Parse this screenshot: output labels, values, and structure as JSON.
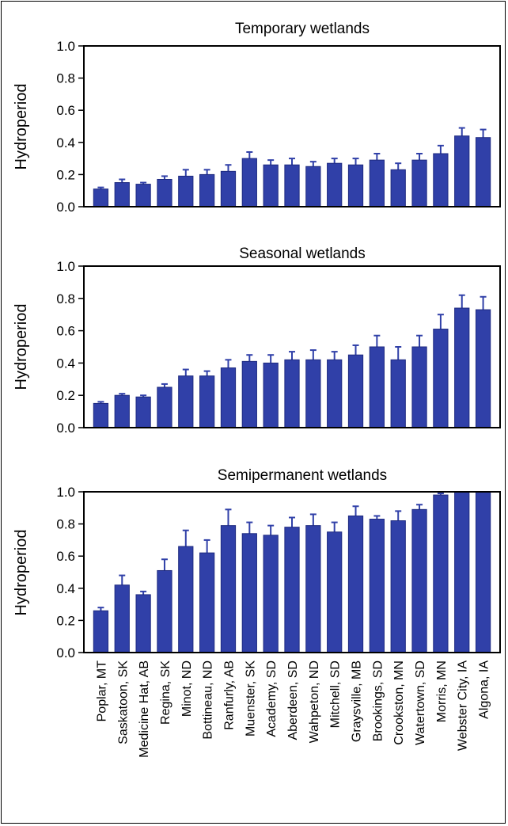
{
  "colors": {
    "bar": "#3040A8",
    "bar_edge": "#1E2A80",
    "axis": "#000000"
  },
  "chart_data": [
    {
      "type": "bar",
      "title": "Temporary wetlands",
      "ylabel": "Hydroperiod",
      "xlabel": "",
      "ylim": [
        0,
        1.0
      ],
      "yticks": [
        "0.0",
        "0.2",
        "0.4",
        "0.6",
        "0.8",
        "1.0"
      ],
      "categories": [
        "Poplar, MT",
        "Saskatoon, SK",
        "Medicine Hat, AB",
        "Regina, SK",
        "Minot, ND",
        "Bottineau, ND",
        "Ranfurly, AB",
        "Muenster, SK",
        "Academy, SD",
        "Aberdeen, SD",
        "Wahpeton, ND",
        "Mitchell, SD",
        "Graysville, MB",
        "Brookings, SD",
        "Crookston, MN",
        "Watertown, SD",
        "Morris, MN",
        "Webster City, IA",
        "Algona, IA"
      ],
      "values": [
        0.11,
        0.15,
        0.14,
        0.17,
        0.19,
        0.2,
        0.22,
        0.3,
        0.26,
        0.26,
        0.25,
        0.27,
        0.26,
        0.29,
        0.23,
        0.29,
        0.33,
        0.44,
        0.43
      ],
      "errors": [
        0.01,
        0.02,
        0.01,
        0.02,
        0.04,
        0.03,
        0.04,
        0.04,
        0.03,
        0.04,
        0.03,
        0.03,
        0.04,
        0.04,
        0.04,
        0.04,
        0.05,
        0.05,
        0.05
      ]
    },
    {
      "type": "bar",
      "title": "Seasonal wetlands",
      "ylabel": "Hydroperiod",
      "xlabel": "",
      "ylim": [
        0,
        1.0
      ],
      "yticks": [
        "0.0",
        "0.2",
        "0.4",
        "0.6",
        "0.8",
        "1.0"
      ],
      "categories": [
        "Poplar, MT",
        "Saskatoon, SK",
        "Medicine Hat, AB",
        "Regina, SK",
        "Minot, ND",
        "Bottineau, ND",
        "Ranfurly, AB",
        "Muenster, SK",
        "Academy, SD",
        "Aberdeen, SD",
        "Wahpeton, ND",
        "Mitchell, SD",
        "Graysville, MB",
        "Brookings, SD",
        "Crookston, MN",
        "Watertown, SD",
        "Morris, MN",
        "Webster City, IA",
        "Algona, IA"
      ],
      "values": [
        0.15,
        0.2,
        0.19,
        0.25,
        0.32,
        0.32,
        0.37,
        0.41,
        0.4,
        0.42,
        0.42,
        0.42,
        0.45,
        0.5,
        0.42,
        0.5,
        0.61,
        0.74,
        0.73
      ],
      "errors": [
        0.01,
        0.01,
        0.01,
        0.02,
        0.04,
        0.03,
        0.05,
        0.04,
        0.05,
        0.05,
        0.06,
        0.05,
        0.06,
        0.07,
        0.08,
        0.07,
        0.09,
        0.08,
        0.08
      ]
    },
    {
      "type": "bar",
      "title": "Semipermanent wetlands",
      "ylabel": "Hydroperiod",
      "xlabel": "",
      "ylim": [
        0,
        1.0
      ],
      "yticks": [
        "0.0",
        "0.2",
        "0.4",
        "0.6",
        "0.8",
        "1.0"
      ],
      "categories": [
        "Poplar, MT",
        "Saskatoon, SK",
        "Medicine Hat, AB",
        "Regina, SK",
        "Minot, ND",
        "Bottineau, ND",
        "Ranfurly, AB",
        "Muenster, SK",
        "Academy, SD",
        "Aberdeen, SD",
        "Wahpeton, ND",
        "Mitchell, SD",
        "Graysville, MB",
        "Brookings, SD",
        "Crookston, MN",
        "Watertown, SD",
        "Morris, MN",
        "Webster City, IA",
        "Algona, IA"
      ],
      "values": [
        0.26,
        0.42,
        0.36,
        0.51,
        0.66,
        0.62,
        0.79,
        0.74,
        0.73,
        0.78,
        0.79,
        0.75,
        0.85,
        0.83,
        0.82,
        0.89,
        0.98,
        1.0,
        1.0
      ],
      "errors": [
        0.02,
        0.06,
        0.02,
        0.07,
        0.1,
        0.08,
        0.1,
        0.07,
        0.06,
        0.06,
        0.07,
        0.06,
        0.06,
        0.02,
        0.06,
        0.03,
        0.01,
        0.0,
        0.0
      ]
    }
  ]
}
